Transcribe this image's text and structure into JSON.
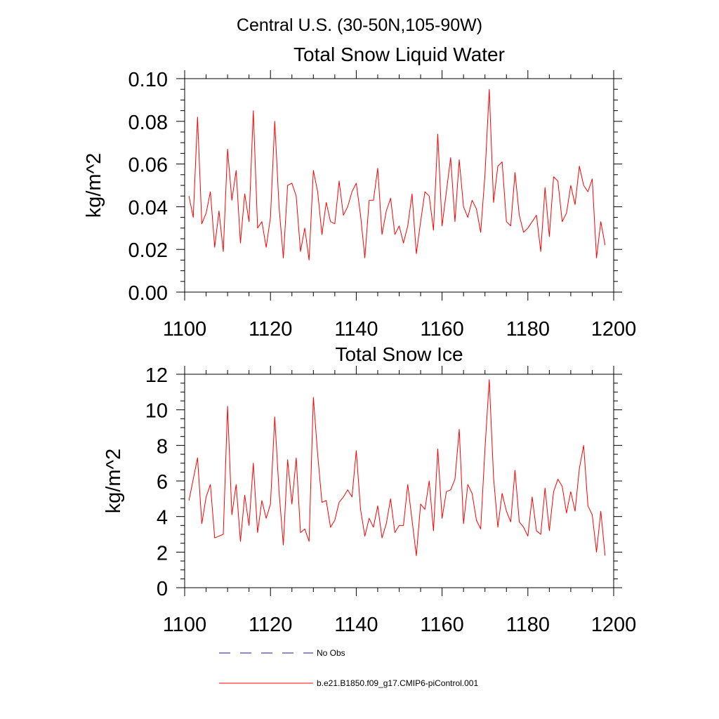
{
  "suptitle": "Central U.S. (30-50N,105-90W)",
  "chart_data": [
    {
      "type": "line",
      "title": "Total Snow Liquid Water",
      "xlabel": "",
      "ylabel": "kg/m^2",
      "xlim": [
        1100,
        1200
      ],
      "ylim": [
        0.0,
        0.1
      ],
      "xticks": [
        1100,
        1120,
        1140,
        1160,
        1180,
        1200
      ],
      "xtick_labels": [
        "1100",
        "1120",
        "1140",
        "1160",
        "1180",
        "1200"
      ],
      "yticks": [
        0.0,
        0.02,
        0.04,
        0.06,
        0.08,
        0.1
      ],
      "ytick_labels": [
        "0.00",
        "0.02",
        "0.04",
        "0.06",
        "0.08",
        "0.10"
      ],
      "grid": false,
      "series": [
        {
          "name": "b.e21.B1850.f09_g17.CMIP6-piControl.001",
          "color": "#ff0000",
          "x_start": 1101,
          "x_step": 1,
          "values": [
            0.045,
            0.035,
            0.082,
            0.032,
            0.037,
            0.047,
            0.021,
            0.038,
            0.019,
            0.067,
            0.043,
            0.057,
            0.023,
            0.046,
            0.033,
            0.085,
            0.03,
            0.033,
            0.021,
            0.035,
            0.08,
            0.04,
            0.016,
            0.05,
            0.051,
            0.045,
            0.019,
            0.03,
            0.015,
            0.057,
            0.047,
            0.027,
            0.042,
            0.033,
            0.032,
            0.052,
            0.036,
            0.04,
            0.047,
            0.051,
            0.036,
            0.016,
            0.043,
            0.043,
            0.058,
            0.027,
            0.038,
            0.044,
            0.027,
            0.031,
            0.023,
            0.031,
            0.046,
            0.018,
            0.033,
            0.047,
            0.045,
            0.029,
            0.074,
            0.031,
            0.047,
            0.063,
            0.033,
            0.062,
            0.04,
            0.035,
            0.043,
            0.039,
            0.028,
            0.055,
            0.095,
            0.042,
            0.059,
            0.061,
            0.033,
            0.031,
            0.056,
            0.036,
            0.028,
            0.03,
            0.033,
            0.036,
            0.019,
            0.049,
            0.026,
            0.054,
            0.052,
            0.033,
            0.037,
            0.05,
            0.041,
            0.059,
            0.05,
            0.047,
            0.053,
            0.016,
            0.033,
            0.022
          ]
        }
      ]
    },
    {
      "type": "line",
      "title": "Total Snow Ice",
      "xlabel": "",
      "ylabel": "kg/m^2",
      "xlim": [
        1100,
        1200
      ],
      "ylim": [
        0,
        12
      ],
      "xticks": [
        1100,
        1120,
        1140,
        1160,
        1180,
        1200
      ],
      "xtick_labels": [
        "1100",
        "1120",
        "1140",
        "1160",
        "1180",
        "1200"
      ],
      "yticks": [
        0,
        2,
        4,
        6,
        8,
        10,
        12
      ],
      "ytick_labels": [
        "0",
        "2",
        "4",
        "6",
        "8",
        "10",
        "12"
      ],
      "grid": false,
      "series": [
        {
          "name": "b.e21.B1850.f09_g17.CMIP6-piControl.001",
          "color": "#ff0000",
          "x_start": 1101,
          "x_step": 1,
          "values": [
            4.9,
            6.1,
            7.3,
            3.6,
            5.1,
            5.8,
            2.8,
            2.9,
            3.0,
            10.2,
            4.1,
            5.8,
            2.6,
            5.2,
            3.5,
            7.0,
            3.1,
            4.9,
            3.9,
            4.7,
            9.6,
            5.4,
            2.4,
            7.2,
            4.7,
            7.3,
            3.1,
            3.3,
            2.6,
            10.7,
            7.5,
            4.8,
            4.9,
            3.4,
            3.8,
            4.8,
            5.1,
            5.5,
            5.1,
            7.7,
            4.4,
            2.9,
            3.9,
            3.4,
            4.6,
            2.8,
            3.6,
            5.0,
            3.1,
            3.5,
            3.5,
            5.8,
            3.8,
            1.8,
            4.7,
            4.4,
            6.0,
            3.2,
            7.8,
            3.9,
            5.4,
            5.5,
            6.1,
            8.9,
            3.6,
            5.8,
            5.3,
            3.8,
            3.3,
            7.8,
            11.7,
            6.2,
            3.4,
            5.3,
            4.3,
            3.7,
            6.6,
            3.7,
            3.4,
            2.9,
            5.1,
            3.2,
            3.0,
            5.6,
            3.2,
            5.4,
            6.1,
            5.7,
            4.2,
            5.4,
            4.3,
            6.7,
            8.0,
            4.6,
            4.1,
            2.0,
            4.3,
            1.8
          ]
        }
      ]
    }
  ],
  "legend": {
    "placement": "bottom",
    "entries": [
      {
        "label": "No Obs",
        "color": "#1a1a8c",
        "style": "dashed"
      },
      {
        "label": "b.e21.B1850.f09_g17.CMIP6-piControl.001",
        "color": "#ff0000",
        "style": "solid"
      }
    ]
  }
}
